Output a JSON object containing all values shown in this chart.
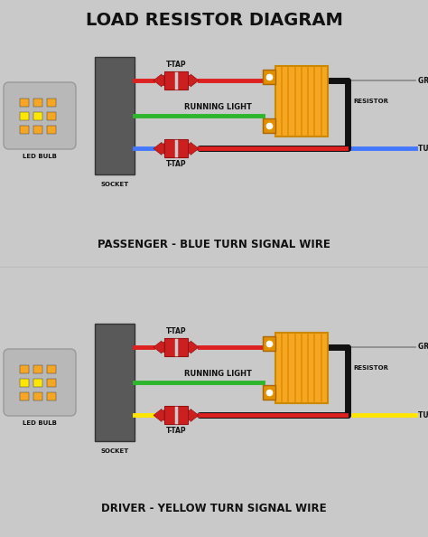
{
  "title": "LOAD RESISTOR DIAGRAM",
  "bg_color": "#c9c9c9",
  "title_color": "#111111",
  "title_fontsize": 14,
  "diagram1_label": "PASSENGER - BLUE TURN SIGNAL WIRE",
  "diagram2_label": "DRIVER - YELLOW TURN SIGNAL WIRE",
  "socket_color": "#595959",
  "led_body_color": "#b8b8b8",
  "led_neck_color": "#a0a0a0",
  "led_light_orange": "#F5A623",
  "led_light_yellow": "#FFE600",
  "resistor_color": "#F5A623",
  "resistor_stripe_color": "#E09000",
  "resistor_tab_color": "#E09000",
  "ttap_body_color": "#CC2020",
  "ttap_arrow_color": "#CC2020",
  "ttap_blade_color": "#cccccc",
  "wire_red": "#DD2020",
  "wire_black": "#111111",
  "wire_green": "#2DB52D",
  "wire_blue": "#4477FF",
  "wire_yellow": "#FFE600",
  "label_color": "#111111",
  "wire_lw": 3.5,
  "black_wire_lw": 5.0
}
